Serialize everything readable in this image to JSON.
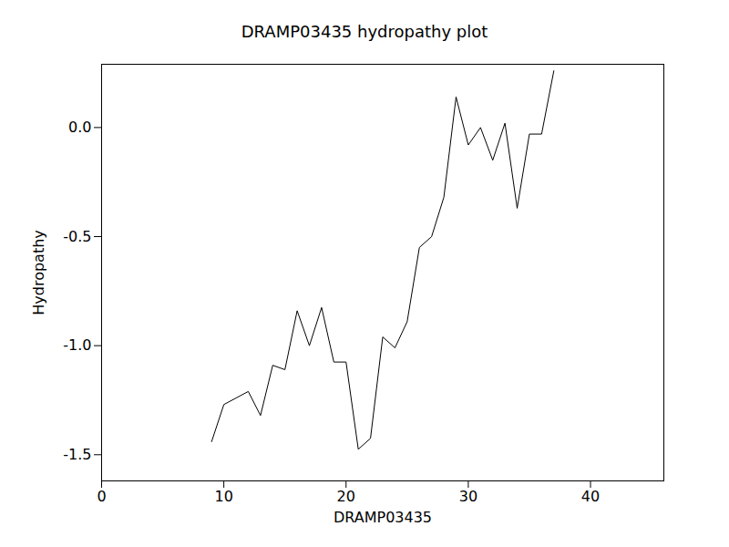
{
  "chart_data": {
    "type": "line",
    "title": "DRAMP03435 hydropathy plot",
    "x_label": "DRAMP03435",
    "y_label": "Hydropathy",
    "x": [
      9,
      10,
      11,
      12,
      13,
      14,
      15,
      16,
      17,
      18,
      19,
      20,
      21,
      22,
      23,
      24,
      25,
      26,
      27,
      28,
      29,
      30,
      31,
      32,
      33,
      34,
      35,
      36,
      37
    ],
    "values": [
      -1.44,
      -1.27,
      -1.24,
      -1.21,
      -1.32,
      -1.09,
      -1.11,
      -0.84,
      -1.0,
      -0.825,
      -1.075,
      -1.075,
      -1.475,
      -1.425,
      -0.96,
      -1.01,
      -0.89,
      -0.55,
      -0.5,
      -0.32,
      0.14,
      -0.08,
      0.0,
      -0.15,
      0.02,
      -0.37,
      -0.03,
      -0.03,
      0.26
    ],
    "color": "#000000",
    "xlim": [
      0,
      46
    ],
    "xticks": [
      0,
      10,
      20,
      30,
      40
    ],
    "ylim": [
      -1.62,
      0.29
    ],
    "yticks": [
      {
        "value": -1.5,
        "label": "-1.5"
      },
      {
        "value": -1.0,
        "label": "-1.0"
      },
      {
        "value": -0.5,
        "label": "-0.5"
      },
      {
        "value": 0,
        "label": "0.0"
      }
    ],
    "grid": false
  }
}
